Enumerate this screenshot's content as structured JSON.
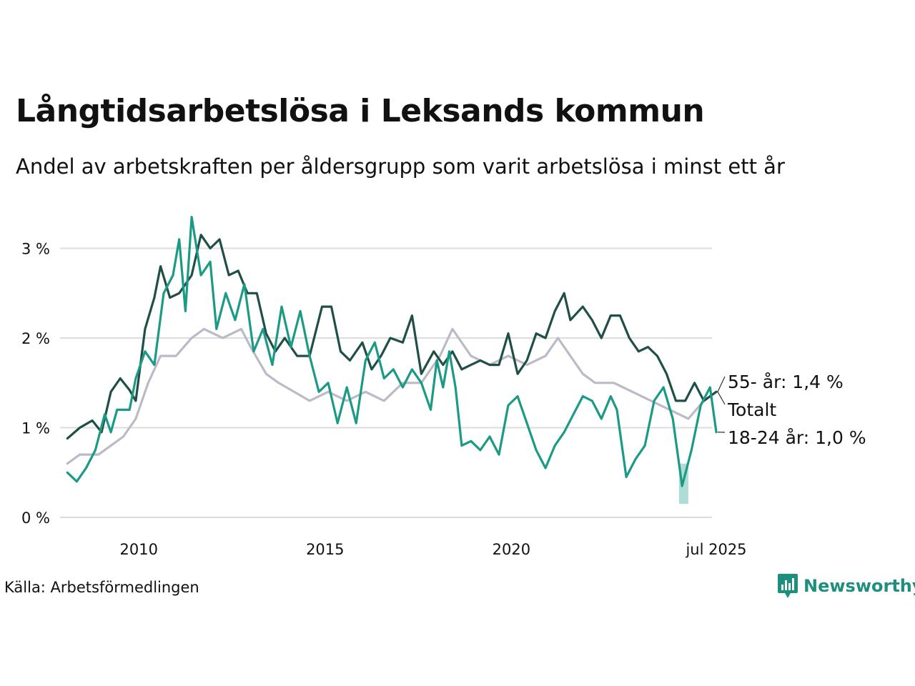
{
  "header": {
    "title": "Långtidsarbetslösa i Leksands kommun",
    "subtitle": "Andel av arbetskraften per åldersgrupp som varit arbetslösa i minst ett år"
  },
  "footer": {
    "source": "Källa: Arbetsförmedlingen",
    "brand": "Newsworthy"
  },
  "colors": {
    "total": "#1f4f46",
    "youth": "#1b9a86",
    "older": "#bdbac8",
    "grid": "#dddddd",
    "brand": "#1e8f7f"
  },
  "chart_data": {
    "type": "line",
    "title": "Långtidsarbetslösa i Leksands kommun",
    "subtitle": "Andel av arbetskraften per åldersgrupp som varit arbetslösa i minst ett år",
    "ylim": [
      0,
      3.4
    ],
    "xlim": [
      "2008-02",
      "2025-07"
    ],
    "y_ticks": [
      {
        "value": 0,
        "label": "0 %"
      },
      {
        "value": 1,
        "label": "1 %"
      },
      {
        "value": 2,
        "label": "2 %"
      },
      {
        "value": 3,
        "label": "3 %"
      }
    ],
    "x_ticks": [
      {
        "value": "2010-01",
        "label": "2010"
      },
      {
        "value": "2015-01",
        "label": "2015"
      },
      {
        "value": "2020-01",
        "label": "2020"
      },
      {
        "value": "2025-07",
        "label": "jul 2025"
      }
    ],
    "grid": true,
    "series": [
      {
        "name": "55- år",
        "end_label": "55- år: 1,4 %",
        "color_key": "older",
        "points": [
          [
            "2008-02",
            0.6
          ],
          [
            "2008-06",
            0.7
          ],
          [
            "2008-12",
            0.7
          ],
          [
            "2009-04",
            0.8
          ],
          [
            "2009-08",
            0.9
          ],
          [
            "2009-12",
            1.1
          ],
          [
            "2010-04",
            1.5
          ],
          [
            "2010-08",
            1.8
          ],
          [
            "2011-01",
            1.8
          ],
          [
            "2011-06",
            2.0
          ],
          [
            "2011-10",
            2.1
          ],
          [
            "2012-04",
            2.0
          ],
          [
            "2012-10",
            2.1
          ],
          [
            "2013-01",
            1.9
          ],
          [
            "2013-06",
            1.6
          ],
          [
            "2013-10",
            1.5
          ],
          [
            "2014-03",
            1.4
          ],
          [
            "2014-08",
            1.3
          ],
          [
            "2015-02",
            1.4
          ],
          [
            "2015-08",
            1.3
          ],
          [
            "2016-02",
            1.4
          ],
          [
            "2016-08",
            1.3
          ],
          [
            "2017-02",
            1.5
          ],
          [
            "2017-08",
            1.5
          ],
          [
            "2018-02",
            1.8
          ],
          [
            "2018-06",
            2.1
          ],
          [
            "2018-12",
            1.8
          ],
          [
            "2019-06",
            1.7
          ],
          [
            "2019-12",
            1.8
          ],
          [
            "2020-06",
            1.7
          ],
          [
            "2020-12",
            1.8
          ],
          [
            "2021-04",
            2.0
          ],
          [
            "2021-08",
            1.8
          ],
          [
            "2021-12",
            1.6
          ],
          [
            "2022-04",
            1.5
          ],
          [
            "2022-10",
            1.5
          ],
          [
            "2023-04",
            1.4
          ],
          [
            "2023-10",
            1.3
          ],
          [
            "2024-04",
            1.2
          ],
          [
            "2024-10",
            1.1
          ],
          [
            "2025-03",
            1.3
          ],
          [
            "2025-07",
            1.4
          ]
        ]
      },
      {
        "name": "Totalt",
        "end_label": "Totalt",
        "color_key": "total",
        "points": [
          [
            "2008-02",
            0.88
          ],
          [
            "2008-06",
            1.0
          ],
          [
            "2008-10",
            1.08
          ],
          [
            "2009-01",
            0.95
          ],
          [
            "2009-04",
            1.4
          ],
          [
            "2009-07",
            1.55
          ],
          [
            "2009-10",
            1.42
          ],
          [
            "2009-12",
            1.3
          ],
          [
            "2010-03",
            2.1
          ],
          [
            "2010-06",
            2.45
          ],
          [
            "2010-08",
            2.8
          ],
          [
            "2010-11",
            2.45
          ],
          [
            "2011-02",
            2.5
          ],
          [
            "2011-06",
            2.7
          ],
          [
            "2011-09",
            3.15
          ],
          [
            "2011-12",
            3.0
          ],
          [
            "2012-03",
            3.1
          ],
          [
            "2012-06",
            2.7
          ],
          [
            "2012-09",
            2.75
          ],
          [
            "2012-12",
            2.5
          ],
          [
            "2013-03",
            2.5
          ],
          [
            "2013-06",
            2.05
          ],
          [
            "2013-09",
            1.85
          ],
          [
            "2013-12",
            2.0
          ],
          [
            "2014-04",
            1.8
          ],
          [
            "2014-08",
            1.8
          ],
          [
            "2014-12",
            2.35
          ],
          [
            "2015-03",
            2.35
          ],
          [
            "2015-06",
            1.85
          ],
          [
            "2015-09",
            1.75
          ],
          [
            "2016-01",
            1.95
          ],
          [
            "2016-04",
            1.65
          ],
          [
            "2016-07",
            1.8
          ],
          [
            "2016-10",
            2.0
          ],
          [
            "2017-02",
            1.95
          ],
          [
            "2017-05",
            2.25
          ],
          [
            "2017-08",
            1.6
          ],
          [
            "2017-12",
            1.85
          ],
          [
            "2018-03",
            1.7
          ],
          [
            "2018-06",
            1.85
          ],
          [
            "2018-09",
            1.65
          ],
          [
            "2018-12",
            1.7
          ],
          [
            "2019-03",
            1.75
          ],
          [
            "2019-06",
            1.7
          ],
          [
            "2019-09",
            1.7
          ],
          [
            "2019-12",
            2.05
          ],
          [
            "2020-03",
            1.6
          ],
          [
            "2020-06",
            1.75
          ],
          [
            "2020-09",
            2.05
          ],
          [
            "2020-12",
            2.0
          ],
          [
            "2021-03",
            2.3
          ],
          [
            "2021-06",
            2.5
          ],
          [
            "2021-08",
            2.2
          ],
          [
            "2021-12",
            2.35
          ],
          [
            "2022-03",
            2.2
          ],
          [
            "2022-06",
            2.0
          ],
          [
            "2022-09",
            2.25
          ],
          [
            "2022-12",
            2.25
          ],
          [
            "2023-03",
            2.0
          ],
          [
            "2023-06",
            1.85
          ],
          [
            "2023-09",
            1.9
          ],
          [
            "2023-12",
            1.8
          ],
          [
            "2024-03",
            1.6
          ],
          [
            "2024-06",
            1.3
          ],
          [
            "2024-09",
            1.3
          ],
          [
            "2024-12",
            1.5
          ],
          [
            "2025-03",
            1.3
          ],
          [
            "2025-07",
            1.4
          ]
        ]
      },
      {
        "name": "18-24 år",
        "end_label": "18-24 år: 1,0 %",
        "color_key": "youth",
        "points": [
          [
            "2008-02",
            0.5
          ],
          [
            "2008-05",
            0.4
          ],
          [
            "2008-08",
            0.55
          ],
          [
            "2008-11",
            0.75
          ],
          [
            "2009-02",
            1.15
          ],
          [
            "2009-04",
            0.95
          ],
          [
            "2009-06",
            1.2
          ],
          [
            "2009-10",
            1.2
          ],
          [
            "2009-12",
            1.55
          ],
          [
            "2010-03",
            1.85
          ],
          [
            "2010-06",
            1.7
          ],
          [
            "2010-09",
            2.5
          ],
          [
            "2010-12",
            2.7
          ],
          [
            "2011-02",
            3.1
          ],
          [
            "2011-04",
            2.3
          ],
          [
            "2011-06",
            3.35
          ],
          [
            "2011-09",
            2.7
          ],
          [
            "2011-12",
            2.85
          ],
          [
            "2012-02",
            2.1
          ],
          [
            "2012-05",
            2.5
          ],
          [
            "2012-08",
            2.2
          ],
          [
            "2012-11",
            2.6
          ],
          [
            "2013-02",
            1.85
          ],
          [
            "2013-05",
            2.1
          ],
          [
            "2013-08",
            1.7
          ],
          [
            "2013-11",
            2.35
          ],
          [
            "2014-02",
            1.9
          ],
          [
            "2014-05",
            2.3
          ],
          [
            "2014-08",
            1.8
          ],
          [
            "2014-11",
            1.4
          ],
          [
            "2015-02",
            1.5
          ],
          [
            "2015-05",
            1.05
          ],
          [
            "2015-08",
            1.45
          ],
          [
            "2015-11",
            1.05
          ],
          [
            "2016-02",
            1.75
          ],
          [
            "2016-05",
            1.95
          ],
          [
            "2016-08",
            1.55
          ],
          [
            "2016-11",
            1.65
          ],
          [
            "2017-02",
            1.45
          ],
          [
            "2017-05",
            1.65
          ],
          [
            "2017-08",
            1.5
          ],
          [
            "2017-11",
            1.2
          ],
          [
            "2018-01",
            1.75
          ],
          [
            "2018-03",
            1.45
          ],
          [
            "2018-05",
            1.85
          ],
          [
            "2018-07",
            1.45
          ],
          [
            "2018-09",
            0.8
          ],
          [
            "2018-12",
            0.85
          ],
          [
            "2019-03",
            0.75
          ],
          [
            "2019-06",
            0.9
          ],
          [
            "2019-09",
            0.7
          ],
          [
            "2019-12",
            1.25
          ],
          [
            "2020-03",
            1.35
          ],
          [
            "2020-06",
            1.05
          ],
          [
            "2020-09",
            0.75
          ],
          [
            "2020-12",
            0.55
          ],
          [
            "2021-03",
            0.8
          ],
          [
            "2021-06",
            0.95
          ],
          [
            "2021-09",
            1.15
          ],
          [
            "2021-12",
            1.35
          ],
          [
            "2022-03",
            1.3
          ],
          [
            "2022-06",
            1.1
          ],
          [
            "2022-09",
            1.35
          ],
          [
            "2022-11",
            1.2
          ],
          [
            "2023-02",
            0.45
          ],
          [
            "2023-05",
            0.65
          ],
          [
            "2023-08",
            0.8
          ],
          [
            "2023-11",
            1.3
          ],
          [
            "2024-02",
            1.45
          ],
          [
            "2024-05",
            1.1
          ],
          [
            "2024-08",
            0.35
          ],
          [
            "2024-11",
            0.75
          ],
          [
            "2025-02",
            1.25
          ],
          [
            "2025-05",
            1.45
          ],
          [
            "2025-07",
            0.95
          ]
        ],
        "band": [
          [
            "2024-07",
            0.6,
            0.15
          ],
          [
            "2024-10",
            0.6,
            0.15
          ]
        ]
      }
    ]
  }
}
